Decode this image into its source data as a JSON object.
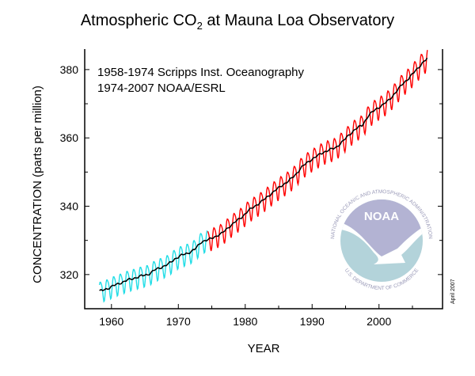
{
  "chart_data": {
    "type": "line",
    "title": "Atmospheric CO",
    "title_subscript": "2",
    "title_suffix": " at Mauna Loa Observatory",
    "xlabel": "YEAR",
    "ylabel": "CONCENTRATION (parts per million)",
    "xlim": [
      1956,
      2009.5
    ],
    "ylim": [
      310,
      386
    ],
    "x_ticks": [
      1960,
      1970,
      1980,
      1990,
      2000
    ],
    "x_tick_labels": [
      "1960",
      "1970",
      "1980",
      "1990",
      "2000"
    ],
    "y_ticks": [
      320,
      340,
      360,
      380
    ],
    "y_tick_labels": [
      "320",
      "340",
      "360",
      "380"
    ],
    "grid": false,
    "annotations": [
      "1958-1974 Scripps Inst. Oceanography",
      "1974-2007 NOAA/ESRL"
    ],
    "date_note": "April 2007",
    "seasonal_amplitude_ppm": 3.0,
    "annual_mean": {
      "years": [
        1958,
        1959,
        1960,
        1961,
        1962,
        1963,
        1964,
        1965,
        1966,
        1967,
        1968,
        1969,
        1970,
        1971,
        1972,
        1973,
        1974,
        1975,
        1976,
        1977,
        1978,
        1979,
        1980,
        1981,
        1982,
        1983,
        1984,
        1985,
        1986,
        1987,
        1988,
        1989,
        1990,
        1991,
        1992,
        1993,
        1994,
        1995,
        1996,
        1997,
        1998,
        1999,
        2000,
        2001,
        2002,
        2003,
        2004,
        2005,
        2006,
        2007
      ],
      "values": [
        315.3,
        315.97,
        316.91,
        317.64,
        318.45,
        318.99,
        319.62,
        320.04,
        321.38,
        322.16,
        323.04,
        324.62,
        325.68,
        326.32,
        327.45,
        329.68,
        330.18,
        331.11,
        332.04,
        333.83,
        335.4,
        336.84,
        338.75,
        340.11,
        341.45,
        343.05,
        344.65,
        346.12,
        347.42,
        349.19,
        351.57,
        353.12,
        354.39,
        355.61,
        356.45,
        357.1,
        358.83,
        360.82,
        362.61,
        363.73,
        366.7,
        368.38,
        369.55,
        371.14,
        373.28,
        375.8,
        377.52,
        379.8,
        381.9,
        383.79
      ]
    },
    "series": [
      {
        "source": "1958-1974 Scripps Inst. Oceanography",
        "x_range": [
          1958.2,
          1974.4
        ],
        "kind": "monthly",
        "color": "#22dde6"
      },
      {
        "source": "1974-2007 NOAA/ESRL",
        "x_range": [
          1974.4,
          2007.3
        ],
        "kind": "monthly",
        "color": "#ff0000"
      },
      {
        "kind": "seasonally adjusted trend",
        "x_range": [
          1958.2,
          2007.3
        ],
        "color": "#000000"
      }
    ]
  },
  "logo": {
    "text": "NOAA",
    "ring_top": "NATIONAL OCEANIC AND ATMOSPHERIC ADMINISTRATION",
    "ring_bottom": "U.S. DEPARTMENT OF COMMERCE",
    "colors": {
      "sky": "#b3b3d3",
      "sea": "#b3d3da",
      "ring_text": "#9a9ab8"
    }
  }
}
